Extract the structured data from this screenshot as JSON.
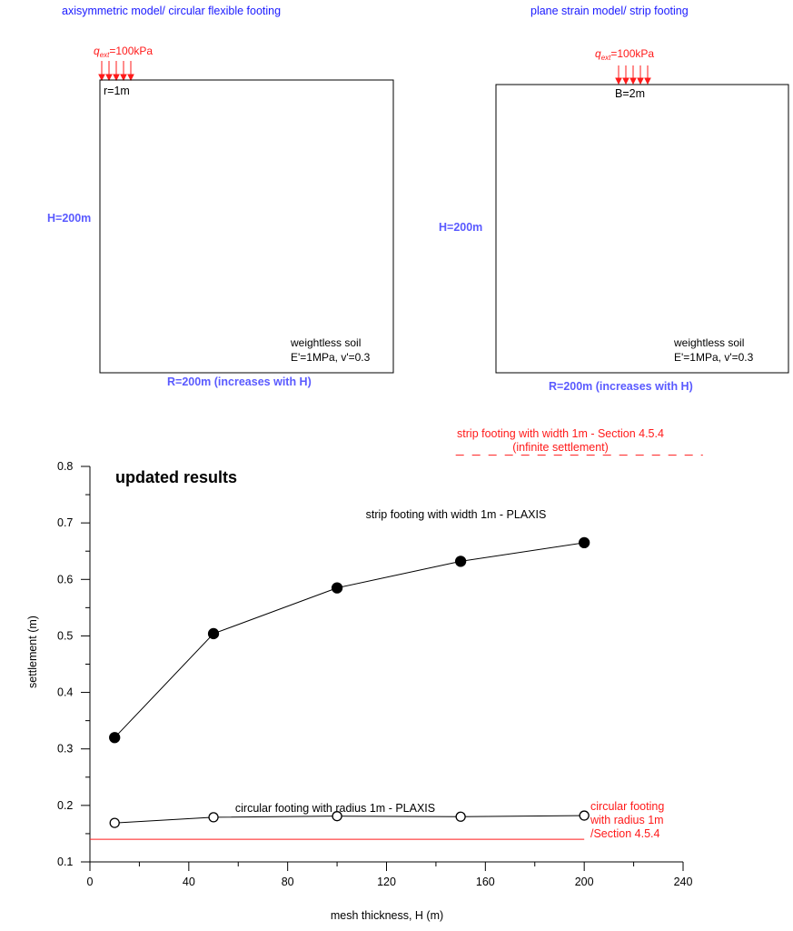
{
  "diagrams": {
    "left": {
      "title": "axisymmetric model/ circular flexible footing",
      "load_q": "q",
      "load_sub": "ext",
      "load_value": "=100kPa",
      "footing": "r=1m",
      "height": "H=200m",
      "width": "R=200m (increases with H)",
      "soil_line1": "weightless soil",
      "soil_line2": "E'=1MPa, v'=0.3"
    },
    "right": {
      "title": "plane strain model/ strip footing",
      "load_q": "q",
      "load_sub": "ext",
      "load_value": "=100kPa",
      "footing": "B=2m",
      "height": "H=200m",
      "width": "R=200m (increases with H)",
      "soil_line1": "weightless soil",
      "soil_line2": "E'=1MPa, v'=0.3"
    }
  },
  "colors": {
    "blue_text": "#1a1aff",
    "dim_text": "#5a5aff",
    "red": "#ff1a1a",
    "black": "#000000"
  },
  "chart_data": {
    "type": "line",
    "title": "updated results",
    "xlabel": "mesh thickness, H (m)",
    "ylabel": "settlement (m)",
    "xlim": [
      0,
      240
    ],
    "ylim": [
      0.1,
      0.8
    ],
    "xticks": [
      0,
      40,
      80,
      120,
      160,
      200,
      240
    ],
    "yticks": [
      0.1,
      0.2,
      0.3,
      0.4,
      0.5,
      0.6,
      0.7,
      0.8
    ],
    "xtick_labels": [
      "0",
      "40",
      "80",
      "120",
      "160",
      "200",
      "240"
    ],
    "ytick_labels": [
      "0.1",
      "0.2",
      "0.3",
      "0.4",
      "0.5",
      "0.6",
      "0.7",
      "0.8"
    ],
    "series": [
      {
        "name": "strip footing with width 1m - PLAXIS",
        "marker": "filled",
        "x": [
          10,
          50,
          100,
          150,
          200
        ],
        "y": [
          0.32,
          0.504,
          0.585,
          0.632,
          0.665
        ]
      },
      {
        "name": "circular footing with radius 1m - PLAXIS",
        "marker": "open",
        "x": [
          10,
          50,
          100,
          150,
          200
        ],
        "y": [
          0.169,
          0.179,
          0.181,
          0.18,
          0.182
        ]
      }
    ],
    "reference_lines": [
      {
        "label_lines": [
          "strip footing with width 1m - Section 4.5.4",
          "(infinite settlement)"
        ],
        "style": "dashed",
        "y": 0.82,
        "x_range": [
          148,
          248
        ]
      },
      {
        "label_lines": [
          "circular footing",
          "with radius 1m",
          "/Section 4.5.4"
        ],
        "style": "solid",
        "y": 0.14,
        "x_range": [
          0,
          200
        ]
      }
    ]
  }
}
